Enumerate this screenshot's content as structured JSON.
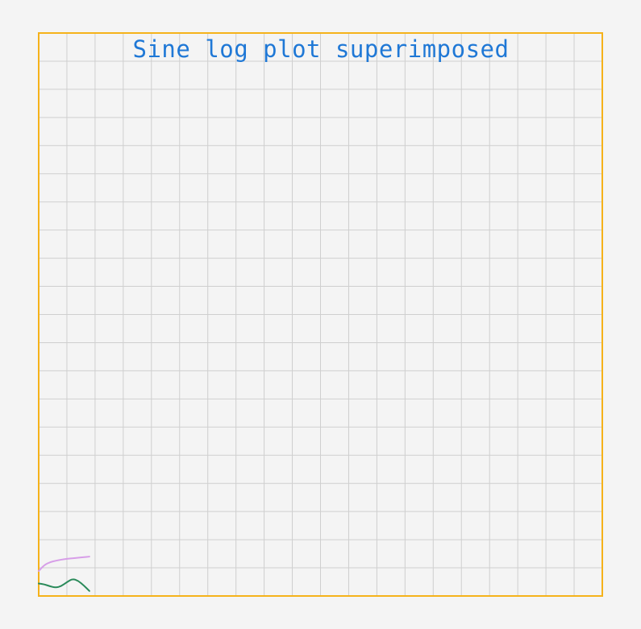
{
  "chart_data": {
    "type": "line",
    "title": "Sine log plot superimposed",
    "xlabel": "",
    "ylabel": "",
    "grid": true,
    "colors": {
      "frame": "#f5b21a",
      "grid": "#cfcfcf",
      "title": "#1f78d6",
      "background": "#f4f4f4"
    },
    "series": [
      {
        "color": "#d79ee8",
        "x": [
          0,
          0.2,
          0.4,
          0.6,
          0.8,
          1.0,
          1.2,
          1.4,
          1.6,
          1.8
        ],
        "y": [
          0.6,
          0.82,
          0.92,
          0.97,
          1.01,
          1.04,
          1.06,
          1.08,
          1.1,
          1.12
        ]
      },
      {
        "color": "#2a8a5a",
        "x": [
          0,
          0.2,
          0.4,
          0.6,
          0.8,
          1.0,
          1.2,
          1.4,
          1.6,
          1.8
        ],
        "y": [
          0.15,
          0.12,
          0.05,
          0.0,
          0.05,
          0.2,
          0.32,
          0.25,
          0.08,
          -0.12
        ]
      }
    ]
  }
}
